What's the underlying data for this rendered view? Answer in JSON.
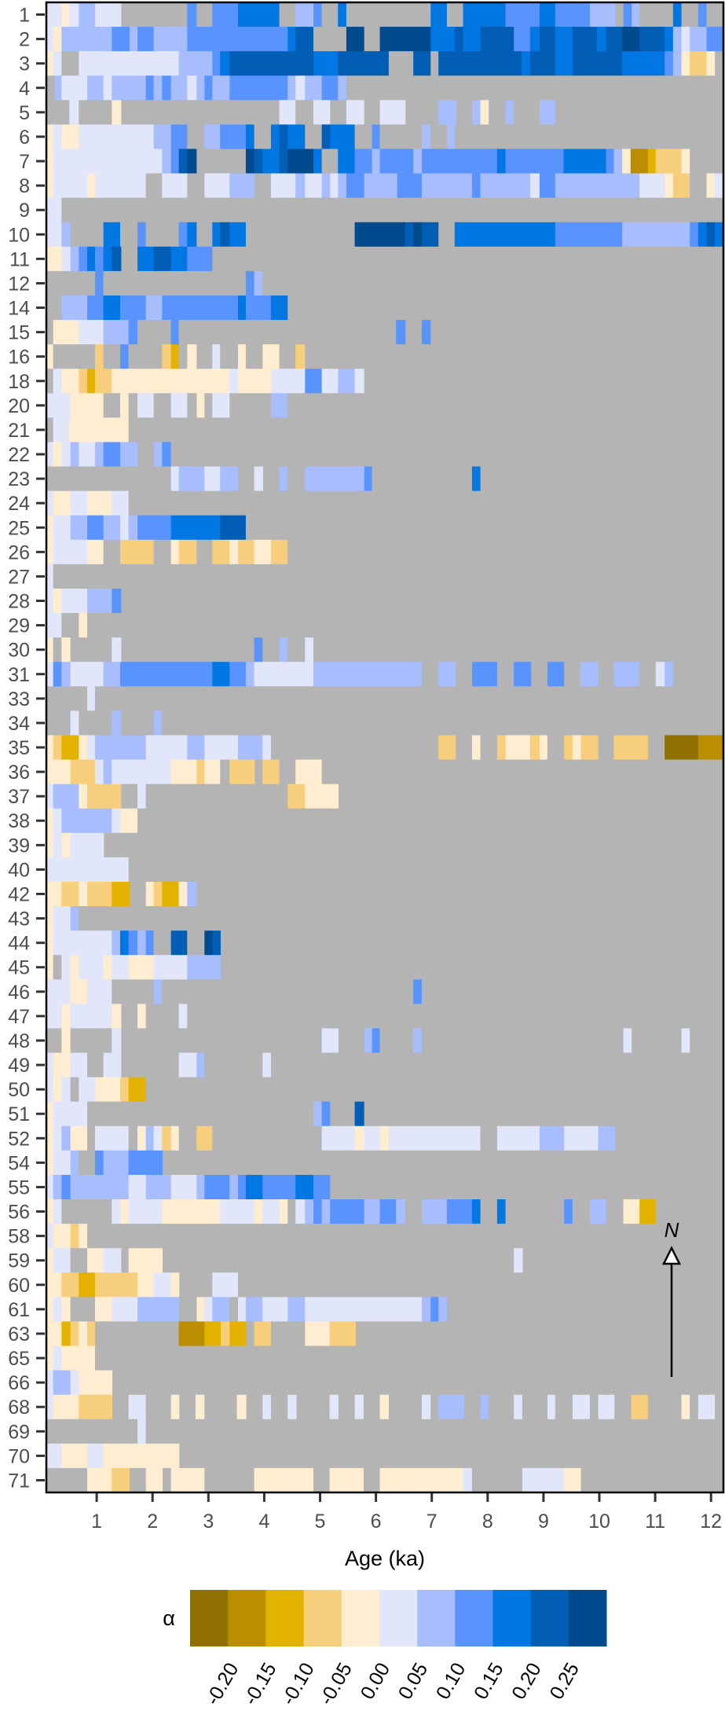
{
  "chart_data": {
    "type": "heatmap",
    "xlabel": "Age (ka)",
    "xlim": [
      0.1,
      12.22
    ],
    "xticks": [
      "1",
      "2",
      "3",
      "4",
      "5",
      "6",
      "7",
      "8",
      "9",
      "10",
      "11",
      "12"
    ],
    "missing_color": "#B3B4B3",
    "legend": {
      "title": "α",
      "placement": "bottom",
      "colors": [
        "#8F7000",
        "#BA8E00",
        "#E3B200",
        "#F7CE7B",
        "#FEEDD1",
        "#E1E6FB",
        "#A7BDFD",
        "#5893FE",
        "#0177E4",
        "#015EB4",
        "#014A8E"
      ],
      "labels": [
        "-0.20",
        "-0.15",
        "-0.10",
        "-0.05",
        "0.00",
        "0.05",
        "0.10",
        "0.15",
        "0.20",
        "0.25"
      ]
    },
    "annotation": "N",
    "segment_format": "start_age:class (class = legend color index, g = no data); each segment runs to the next start, last to xlim max",
    "rows": [
      {
        "label": "1",
        "segments": "0.10:5 0.37:4 0.51:5 0.68:6 0.97:5 1.44:g 2.62:7 2.79:g 3.07:7 3.53:8 4.27:g 4.56:6 4.88:7 5.03:g 5.32:8 5.47:g 6.98:8 7.27:g 7.56:8 8.32:7 8.93:8 9.21:7 9.83:6 10.28:g 10.43:7 10.58:6 10.72:g 11.32:8 11.47:g 11.77:7 11.92:g"
      },
      {
        "label": "2",
        "segments": "0.10:5 0.22:4 0.37:6 1.27:7 1.59:6 1.73:7 2.02:6 2.62:7 4.42:8 4.56:9 4.88:g 5.47:10 5.79:g 6.07:10 6.98:8 7.41:9 7.56:8 7.87:9 8.47:7 8.76:8 8.93:9 9.21:8 9.52:9 9.96:8 10.12:9 10.41:10 10.72:9 11.17:8 11.32:6 11.47:5 11.62:6 11.92:7"
      },
      {
        "label": "3",
        "segments": "0.10:4 0.22:5 0.37:g 0.68:5 2.47:6 3.07:7 3.21:8 3.38:9 4.88:8 5.32:9 6.23:g 6.67:9 6.98:g 7.12:9 8.61:8 8.76:9 9.21:8 9.52:9 10.41:8 11.17:7 11.32:6 11.47:4 11.62:3 11.92:4 12.07:g"
      },
      {
        "label": "4",
        "segments": "0.10:g 0.25:6 0.37:5 0.83:6 1.12:5 1.27:6 1.88:7 2.02:6 2.17:7 2.33:6 2.62:5 2.79:6 2.93:7 3.07:6 3.38:7 4.42:6 4.56:5 4.73:6 5.03:7 5.32:6 5.47:g"
      },
      {
        "label": "5",
        "segments": "0.10:g 0.51:5 0.68:g 1.27:4 1.44:g 4.27:5 4.56:g 4.88:5 5.18:g 5.47:5 5.79:g 6.07:5 6.53:g 7.12:6 7.44:g 7.72:6 7.87:4 8.02:g 8.32:6 8.47:g 8.93:6 9.21:g"
      },
      {
        "label": "6",
        "segments": "0.10:4 0.22:5 0.37:4 0.68:5 2.02:6 2.33:7 2.62:g 2.93:6 3.21:7 3.67:8 3.82:g 4.12:8 4.27:9 4.42:8 4.73:g 5.03:9 5.18:8 5.62:g 5.93:7 6.07:g 6.82:6 6.98:g 7.27:6 7.41:g"
      },
      {
        "label": "7",
        "segments": "0.10:4 0.22:5 2.17:6 2.33:7 2.47:9 2.62:10 2.79:g 3.67:10 3.82:9 3.97:8 4.27:9 4.42:10 4.88:8 5.03:g 5.32:8 5.62:7 5.93:6 6.07:7 6.67:6 6.82:7 8.17:8 8.32:7 9.36:8 10.12:7 10.26:6 10.41:4 10.56:1 10.87:2 11.01:3 11.47:4 11.62:g"
      },
      {
        "label": "8",
        "segments": "0.10:4 0.22:5 0.83:4 0.97:5 1.88:g 2.17:5 2.62:g 2.93:5 3.38:6 3.82:g 4.12:5 4.56:6 4.73:5 5.03:6 5.18:5 5.32:6 5.47:7 5.79:6 6.38:7 6.82:6 7.72:7 7.87:6 8.76:5 8.93:7 9.21:6 10.72:5 11.17:4 11.32:3 11.62:g 11.92:4 12.07:5"
      },
      {
        "label": "9",
        "segments": "0.10:5 0.37:g"
      },
      {
        "label": "10",
        "segments": "0.10:5 0.37:6 0.53:g 1.12:8 1.42:g 1.73:7 1.88:g 2.47:7 2.62:8 2.79:g 3.07:8 3.21:9 3.38:8 3.67:g 5.62:10 6.52:9 6.67:10 6.82:9 7.12:g 7.41:8 9.21:7 10.41:6 11.62:7 11.77:8 11.92:9 12.07:8"
      },
      {
        "label": "11",
        "segments": "0.10:4 0.37:5 0.53:6 0.68:7 0.83:8 0.97:7 1.12:8 1.27:9 1.44:g 1.73:8 2.02:9 2.33:8 2.62:7 3.07:g"
      },
      {
        "label": "12",
        "segments": "0.10:g 0.97:7 1.12:g 3.67:7 3.82:6 3.97:g"
      },
      {
        "label": "14",
        "segments": "0.10:g 0.37:6 0.83:7 1.12:8 1.42:7 1.88:6 2.17:7 3.53:8 3.67:7 4.12:8 4.42:g"
      },
      {
        "label": "15",
        "segments": "0.10:g 0.22:4 0.68:5 1.12:6 1.57:7 1.73:g 2.33:7 2.47:g 6.36:7 6.53:g 6.82:7 6.98:g"
      },
      {
        "label": "16",
        "segments": "0.10:4 0.22:g 0.97:3 1.12:g 1.42:7 1.57:g 2.17:3 2.33:2 2.47:g 2.62:4 2.79:g 3.07:5 3.21:g 3.53:4 3.67:g 3.97:4 4.27:g 4.56:3 4.73:g"
      },
      {
        "label": "18",
        "segments": "0.10:g 0.22:5 0.37:4 0.68:3 0.83:2 0.97:3 1.27:4 3.38:5 3.53:4 4.12:5 4.73:7 5.03:5 5.32:6 5.62:5 5.79:g"
      },
      {
        "label": "20",
        "segments": "0.10:5 0.53:4 1.12:g 1.42:4 1.57:g 1.73:5 2.02:g 2.33:5 2.62:g 2.79:4 2.93:g 3.07:5 3.38:g 4.12:6 4.42:g"
      },
      {
        "label": "21",
        "segments": "0.10:g 0.22:5 0.51:4 1.57:g"
      },
      {
        "label": "22",
        "segments": "0.10:5 0.22:4 0.37:5 0.53:6 0.68:5 0.97:6 1.12:7 1.42:6 1.73:g 2.02:6 2.17:7 2.33:g"
      },
      {
        "label": "23",
        "segments": "0.10:g 2.33:5 2.47:6 2.93:5 3.21:6 3.53:g 3.82:5 3.98:g 4.27:6 4.42:g 4.73:6 5.79:7 5.93:g 7.72:8 7.87:g"
      },
      {
        "label": "24",
        "segments": "0.10:5 0.22:4 0.53:5 0.83:4 1.27:5 1.57:g"
      },
      {
        "label": "25",
        "segments": "0.10:4 0.22:5 0.53:6 0.83:7 1.12:6 1.42:5 1.57:6 1.73:7 2.33:8 3.21:9 3.67:g"
      },
      {
        "label": "26",
        "segments": "0.10:4 0.22:5 0.83:4 1.12:g 1.42:3 2.02:g 2.33:4 2.47:3 2.79:g 3.07:3 3.38:4 3.53:3 3.82:4 4.12:3 4.42:g"
      },
      {
        "label": "27",
        "segments": "0.10:5 0.22:g"
      },
      {
        "label": "28",
        "segments": "0.10:5 0.22:4 0.37:5 0.83:6 1.27:7 1.44:g"
      },
      {
        "label": "29",
        "segments": "0.10:5 0.37:g 0.68:4 0.83:g"
      },
      {
        "label": "30",
        "segments": "0.10:4 0.22:g 0.37:4 0.53:g 1.27:5 1.44:g 3.82:7 3.97:g 4.27:6 4.42:g 4.73:5 4.88:g"
      },
      {
        "label": "31",
        "segments": "0.10:5 0.22:7 0.37:6 0.53:5 1.12:6 1.42:7 3.07:8 3.38:7 3.67:6 3.82:5 4.88:6 6.82:g 7.12:6 7.43:g 7.72:7 8.17:g 8.47:7 8.78:g 9.07:7 9.37:g 9.66:6 9.98:g 10.26:6 10.72:g 11.01:5 11.17:6 11.32:g"
      },
      {
        "label": "33",
        "segments": "0.10:g 0.83:5 0.97:g"
      },
      {
        "label": "34",
        "segments": "0.10:g 0.53:5 0.68:g 1.27:6 1.44:g 2.02:6 2.17:g"
      },
      {
        "label": "35",
        "segments": "0.10:4 0.22:3 0.37:2 0.68:4 0.83:5 0.97:6 1.88:5 2.62:6 2.93:5 3.53:6 3.97:5 4.12:g 7.12:3 7.43:g 7.72:4 7.87:g 8.17:3 8.32:4 8.76:3 8.93:4 9.07:g 9.37:3 9.52:4 9.67:3 9.98:g 10.26:3 10.87:g 11.17:0 11.77:1"
      },
      {
        "label": "36",
        "segments": "0.10:4 0.53:3 0.97:5 1.12:6 1.27:5 2.33:4 2.79:3 2.93:4 3.21:g 3.38:3 3.83:g 3.97:3 4.27:g 4.56:4 5.03:g"
      },
      {
        "label": "37",
        "segments": "0.10:5 0.22:6 0.68:4 0.83:3 1.44:g 1.73:5 1.88:g 4.42:3 4.73:4 5.33:g"
      },
      {
        "label": "38",
        "segments": "0.10:4 0.22:5 0.37:6 1.27:5 1.42:4 1.73:g"
      },
      {
        "label": "39",
        "segments": "0.10:4 0.22:5 0.37:4 0.53:5 1.13:g"
      },
      {
        "label": "40",
        "segments": "0.10:5 1.57:g"
      },
      {
        "label": "42",
        "segments": "0.10:4 0.37:3 0.68:4 0.83:3 1.27:2 1.59:g 1.88:4 2.02:3 2.17:2 2.47:4 2.62:6 2.79:g"
      },
      {
        "label": "43",
        "segments": "0.10:4 0.22:5 0.53:6 0.68:g"
      },
      {
        "label": "44",
        "segments": "0.10:4 0.22:5 1.27:6 1.42:8 1.57:7 1.73:6 1.88:7 2.02:g 2.33:9 2.62:g 2.93:10 3.07:9 3.22:g"
      },
      {
        "label": "45",
        "segments": "0.10:4 0.22:g 0.37:5 0.53:4 0.68:5 1.12:4 1.27:5 1.57:4 2.02:5 2.62:6 3.22:g"
      },
      {
        "label": "46",
        "segments": "0.10:5 0.53:4 0.83:5 1.27:g 2.02:6 2.17:g 6.67:7 6.82:g"
      },
      {
        "label": "47",
        "segments": "0.10:5 0.37:4 0.53:5 1.27:4 1.44:g 1.73:4 1.88:g 2.47:5 2.62:g"
      },
      {
        "label": "48",
        "segments": "0.10:g 0.37:4 0.53:g 1.27:5 1.44:g 5.03:5 5.33:g 5.79:6 5.93:7 6.07:g 6.67:6 6.82:g 10.43:5 10.58:g 11.47:5 11.62:g"
      },
      {
        "label": "49",
        "segments": "0.10:5 0.22:4 0.53:5 0.83:g 1.12:5 1.44:g 2.47:5 2.79:6 2.93:g 3.97:5 4.12:g"
      },
      {
        "label": "50",
        "segments": "0.10:5 0.22:4 0.37:5 0.53:g 0.68:5 0.97:4 1.42:3 1.57:2 1.88:g"
      },
      {
        "label": "51",
        "segments": "0.10:4 0.22:5 0.83:g 4.88:6 5.03:7 5.18:g 5.62:9 5.79:g"
      },
      {
        "label": "52",
        "segments": "0.10:4 0.22:5 0.37:6 0.53:4 0.83:g 0.97:5 1.57:g 1.73:4 1.88:6 2.02:5 2.17:3 2.33:4 2.47:g 2.79:3 3.07:g 5.03:5 5.62:4 5.79:5 6.07:4 6.23:5 7.87:g 8.17:5 8.93:6 9.37:5 9.98:6 10.28:g"
      },
      {
        "label": "54",
        "segments": "0.10:4 0.22:5 0.53:6 0.68:g 0.97:7 1.12:6 1.57:7 2.18:g"
      },
      {
        "label": "55",
        "segments": "0.10:5 0.22:6 0.37:7 0.53:6 1.57:5 1.88:6 2.33:5 2.79:6 2.93:7 3.38:6 3.53:7 3.67:8 3.97:7 4.56:8 4.88:7 5.18:g"
      },
      {
        "label": "56",
        "segments": "0.10:4 0.22:5 0.37:g 1.27:5 1.42:4 1.57:5 2.17:4 3.21:5 3.82:4 3.97:5 4.27:4 4.42:g 4.56:5 4.73:6 4.88:7 5.03:6 5.18:7 5.79:6 6.07:7 6.36:6 6.53:g 6.82:6 7.27:7 7.72:8 7.87:g 8.17:8 8.32:g 9.37:7 9.52:g 9.83:6 10.12:g 10.43:4 10.72:2 11.01:g"
      },
      {
        "label": "58",
        "segments": "0.10:5 0.22:4 0.53:3 0.68:4 0.83:g"
      },
      {
        "label": "59",
        "segments": "0.10:4 0.22:5 0.53:g 0.83:4 1.12:5 1.44:g 1.57:4 2.18:g 8.47:5 8.63:g"
      },
      {
        "label": "60",
        "segments": "0.10:4 0.37:3 0.68:2 0.97:3 1.73:4 2.02:5 2.33:4 2.48:g 3.07:5 3.53:g"
      },
      {
        "label": "61",
        "segments": "0.10:4 0.22:5 0.37:4 0.53:g 0.97:4 1.27:5 1.73:6 2.48:g 2.79:4 2.93:5 3.07:6 3.38:g 3.53:5 3.67:6 3.97:5 4.42:6 4.73:5 6.82:6 6.98:7 7.12:6 7.27:g"
      },
      {
        "label": "63",
        "segments": "0.10:4 0.37:2 0.53:3 0.68:4 0.83:3 0.97:g 2.47:1 2.93:2 3.22:3 3.38:2 3.68:g 3.82:3 4.12:g 4.73:4 5.17:3 5.64:g"
      },
      {
        "label": "65",
        "segments": "0.10:4 0.22:5 0.37:4 0.97:g"
      },
      {
        "label": "66",
        "segments": "0.10:5 0.22:6 0.53:5 0.68:4 1.28:g"
      },
      {
        "label": "68",
        "segments": "0.10:5 0.22:4 0.68:3 1.28:g 1.57:5 1.88:g 2.33:4 2.48:g 2.77:4 2.93:g 3.51:4 3.68:g 3.97:5 4.12:g 4.42:5 4.58:g 5.17:5 5.33:g 5.62:5 5.78:g 6.07:4 6.23:g 6.82:5 6.98:g 7.12:6 7.58:g 7.87:6 8.02:g 8.47:5 8.62:g 9.07:5 9.21:g 9.52:5 9.83:g 9.98:5 10.27:g 10.57:3 10.87:g 11.47:4 11.62:g 11.77:5 12.07:g"
      },
      {
        "label": "69",
        "segments": "0.10:g 1.73:5 1.88:g"
      },
      {
        "label": "70",
        "segments": "0.10:5 0.37:4 0.83:5 1.12:4 2.48:g"
      },
      {
        "label": "71",
        "segments": "0.10:g 0.83:4 1.27:3 1.59:g 1.88:4 2.18:g 2.33:4 2.93:g 3.82:4 4.88:g 5.17:4 5.78:g 6.07:4 7.56:5 7.72:g 8.62:5 9.37:4 9.67:g"
      }
    ]
  }
}
